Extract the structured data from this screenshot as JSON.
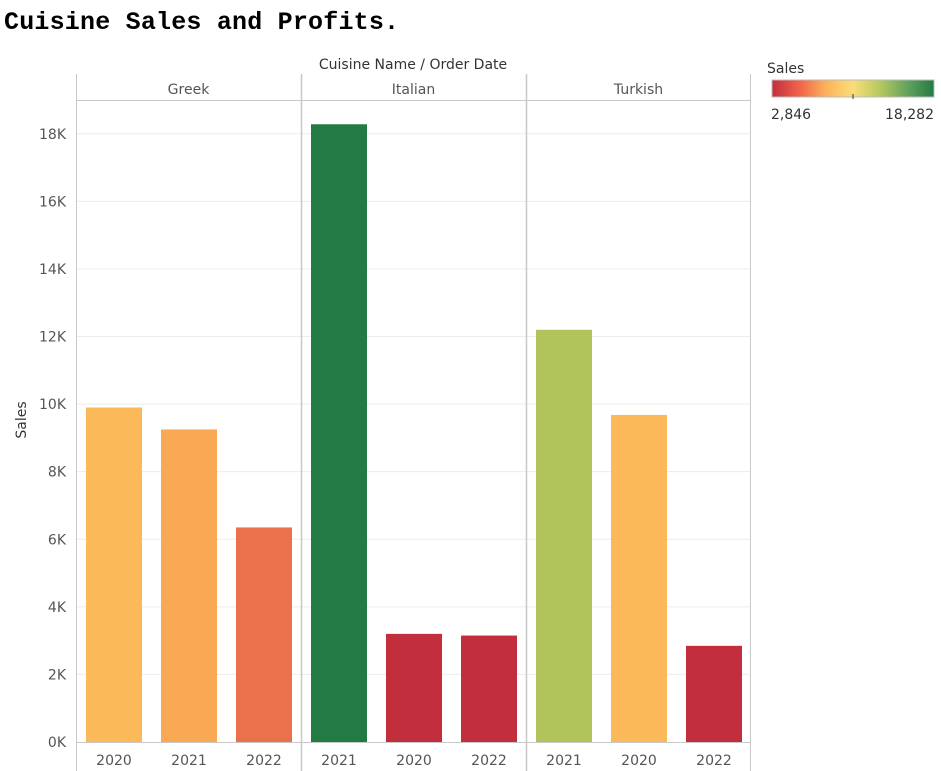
{
  "title": "Cuisine Sales and Profits.",
  "chart_data": {
    "type": "bar",
    "title": "Cuisine Sales and Profits.",
    "column_header": "Cuisine Name / Order Date",
    "ylabel": "Sales",
    "ylim": [
      0,
      19000
    ],
    "yticks": [
      0,
      2000,
      4000,
      6000,
      8000,
      10000,
      12000,
      14000,
      16000,
      18000
    ],
    "ytick_labels": [
      "0K",
      "2K",
      "4K",
      "6K",
      "8K",
      "10K",
      "12K",
      "14K",
      "16K",
      "18K"
    ],
    "grid": true,
    "panels": [
      {
        "name": "Greek",
        "categories": [
          "2020",
          "2021",
          "2022"
        ],
        "values": [
          9900,
          9250,
          6350
        ],
        "colors": [
          "#fbb959",
          "#f9a954",
          "#eb714c"
        ]
      },
      {
        "name": "Italian",
        "categories": [
          "2021",
          "2020",
          "2022"
        ],
        "values": [
          18282,
          3200,
          3150
        ],
        "colors": [
          "#237a42",
          "#c32e3d",
          "#c32e3d"
        ]
      },
      {
        "name": "Turkish",
        "categories": [
          "2021",
          "2020",
          "2022"
        ],
        "values": [
          12200,
          9680,
          2846
        ],
        "colors": [
          "#b1c35b",
          "#fbb959",
          "#c32e3d"
        ]
      }
    ],
    "legend": {
      "title": "Sales",
      "placement": "top-right",
      "min_label": "2,846",
      "max_label": "18,282",
      "gradient": [
        "#c32e3d",
        "#f0624a",
        "#fdb25b",
        "#f9de7a",
        "#b6c85e",
        "#64a35f",
        "#237a42"
      ]
    }
  }
}
